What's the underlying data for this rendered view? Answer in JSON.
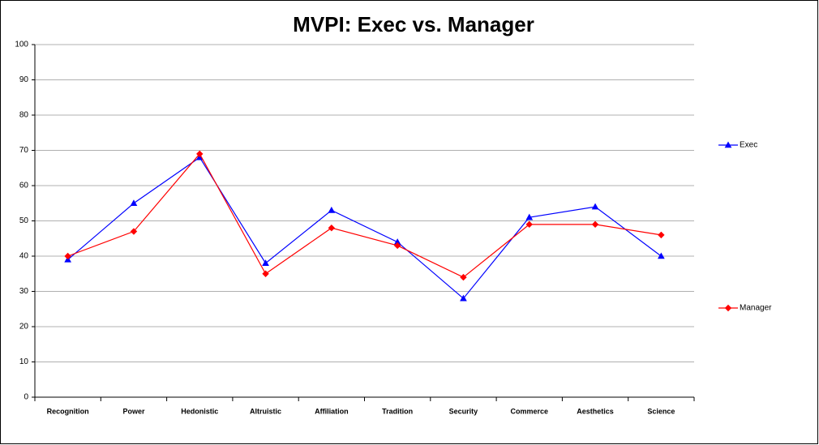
{
  "chart_data": {
    "type": "line",
    "title": "MVPI:  Exec vs. Manager",
    "categories": [
      "Recognition",
      "Power",
      "Hedonistic",
      "Altruistic",
      "Affiliation",
      "Tradition",
      "Security",
      "Commerce",
      "Aesthetics",
      "Science"
    ],
    "series": [
      {
        "name": "Exec",
        "color": "#0000ff",
        "marker": "triangle",
        "values": [
          39,
          55,
          68,
          38,
          53,
          44,
          28,
          51,
          54,
          40
        ]
      },
      {
        "name": "Manager",
        "color": "#ff0000",
        "marker": "diamond",
        "values": [
          40,
          47,
          69,
          35,
          48,
          43,
          34,
          49,
          49,
          46
        ]
      }
    ],
    "ylim": [
      0,
      100
    ],
    "yticks": [
      0,
      10,
      20,
      30,
      40,
      50,
      60,
      70,
      80,
      90,
      100
    ],
    "grid": true,
    "legend": "right"
  }
}
